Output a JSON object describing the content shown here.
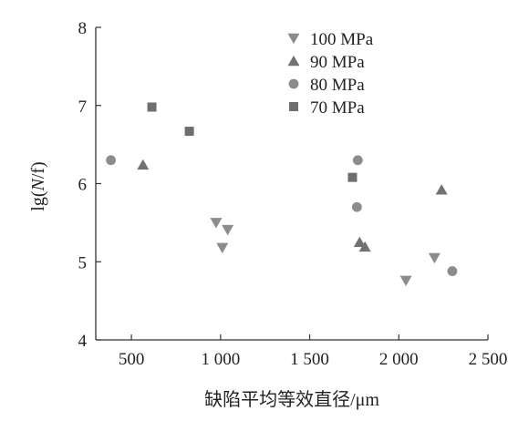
{
  "chart_data": {
    "type": "scatter",
    "xlabel": "缺陷平均等效直径/μm",
    "ylabel_parts": [
      {
        "text": "lg(",
        "italic": false
      },
      {
        "text": "N",
        "italic": true
      },
      {
        "text": "/f)",
        "italic": false
      }
    ],
    "xlim": [
      300,
      2500
    ],
    "ylim": [
      4,
      8
    ],
    "x_ticks": [
      500,
      1000,
      1500,
      2000,
      2500
    ],
    "x_tick_labels": [
      "500",
      "1 000",
      "1 500",
      "2 000",
      "2 500"
    ],
    "y_ticks": [
      4,
      5,
      6,
      7,
      8
    ],
    "y_tick_labels": [
      "4",
      "5",
      "6",
      "7",
      "8"
    ],
    "grid": false,
    "legend_position": "top-right",
    "series": [
      {
        "name": "100 MPa",
        "marker": "triangle-down",
        "color": "#8c8c8c",
        "points": [
          [
            975,
            5.5
          ],
          [
            1010,
            5.18
          ],
          [
            1040,
            5.41
          ],
          [
            2040,
            4.76
          ],
          [
            2200,
            5.05
          ]
        ]
      },
      {
        "name": "90 MPa",
        "marker": "triangle-up",
        "color": "#727272",
        "points": [
          [
            565,
            6.24
          ],
          [
            1780,
            5.25
          ],
          [
            1810,
            5.19
          ],
          [
            2240,
            5.92
          ]
        ]
      },
      {
        "name": "80 MPa",
        "marker": "circle",
        "color": "#8c8c8c",
        "points": [
          [
            385,
            6.3
          ],
          [
            1765,
            5.7
          ],
          [
            1770,
            6.3
          ],
          [
            2300,
            4.88
          ]
        ]
      },
      {
        "name": "70 MPa",
        "marker": "square",
        "color": "#6e6e6e",
        "points": [
          [
            615,
            6.98
          ],
          [
            825,
            6.67
          ],
          [
            1740,
            6.08
          ]
        ]
      }
    ]
  }
}
